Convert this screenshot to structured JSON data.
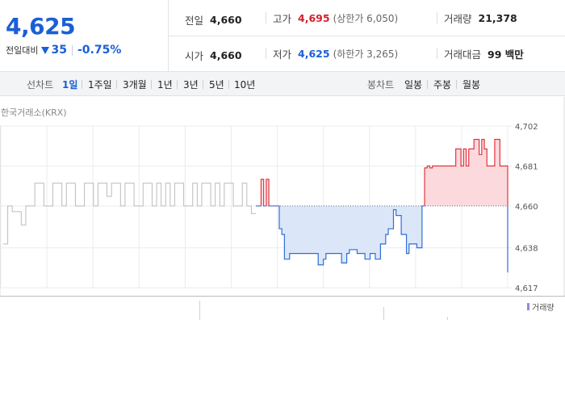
{
  "header": {
    "price": "4,625",
    "change_label": "전일대비",
    "change_value": "35",
    "change_rate": "-0.75%"
  },
  "stats": {
    "prev_close": {
      "label": "전일",
      "value": "4,660"
    },
    "high": {
      "label": "고가",
      "value": "4,695",
      "limit_text": "(상한가 6,050)"
    },
    "volume": {
      "label": "거래량",
      "value": "21,378"
    },
    "open": {
      "label": "시가",
      "value": "4,660"
    },
    "low": {
      "label": "저가",
      "value": "4,625",
      "limit_text": "(하한가 3,265)"
    },
    "amount": {
      "label": "거래대금",
      "value": "99 백만"
    }
  },
  "toolbar": {
    "line_label": "선차트",
    "line_periods": [
      "1일",
      "1주일",
      "3개월",
      "1년",
      "3년",
      "5년",
      "10년"
    ],
    "active_period": "1일",
    "candle_label": "봉차트",
    "candle_periods": [
      "일봉",
      "주봉",
      "월봉"
    ]
  },
  "chart_data": {
    "type": "line",
    "title": "",
    "source_label": "한국거래소(KRX)",
    "xlabel": "",
    "ylabel": "",
    "ylim": [
      4617,
      4702
    ],
    "y_ticks": [
      "4,702",
      "4,681",
      "4,660",
      "4,638",
      "4,617"
    ],
    "y_tick_values": [
      4702,
      4681,
      4660,
      4638,
      4617
    ],
    "reference_value": 4660,
    "grid": true,
    "colors": {
      "prev_day": "#bcbcbc",
      "up": "#e2343f",
      "up_fill": "#fbd9dc",
      "down": "#2e6fd8",
      "down_fill": "#dbe6f8",
      "reference": "#777777"
    },
    "series": [
      {
        "role": "previous-day",
        "values": [
          4640,
          4660,
          4657,
          4657,
          4650,
          4660,
          4660,
          4672,
          4672,
          4660,
          4660,
          4672,
          4672,
          4660,
          4672,
          4672,
          4660,
          4660,
          4672,
          4672,
          4660,
          4672,
          4672,
          4665,
          4672,
          4672,
          4660,
          4672,
          4672,
          4660,
          4660,
          4672,
          4672,
          4660,
          4672,
          4660,
          4672,
          4660,
          4672,
          4672,
          4660,
          4660,
          4672,
          4660,
          4672,
          4672,
          4660,
          4672,
          4660,
          4672,
          4672,
          4660,
          4660,
          4672,
          4660,
          4656,
          4656
        ]
      },
      {
        "role": "today",
        "values": [
          4660,
          4660,
          4674,
          4660,
          4674,
          4660,
          4660,
          4660,
          4660,
          4648,
          4645,
          4632,
          4632,
          4635,
          4635,
          4635,
          4635,
          4635,
          4635,
          4635,
          4635,
          4635,
          4635,
          4635,
          4629,
          4629,
          4632,
          4635,
          4635,
          4635,
          4635,
          4635,
          4635,
          4630,
          4630,
          4635,
          4637,
          4637,
          4637,
          4635,
          4635,
          4635,
          4632,
          4632,
          4635,
          4635,
          4632,
          4632,
          4640,
          4640,
          4645,
          4648,
          4648,
          4658,
          4655,
          4655,
          4645,
          4645,
          4635,
          4640,
          4640,
          4640,
          4638,
          4638,
          4660,
          4680,
          4681,
          4680,
          4681,
          4681,
          4681,
          4681,
          4681,
          4681,
          4681,
          4681,
          4681,
          4690,
          4690,
          4681,
          4690,
          4681,
          4690,
          4690,
          4695,
          4695,
          4687,
          4695,
          4690,
          4681,
          4681,
          4681,
          4695,
          4695,
          4681,
          4681,
          4681,
          4625
        ]
      }
    ]
  }
}
